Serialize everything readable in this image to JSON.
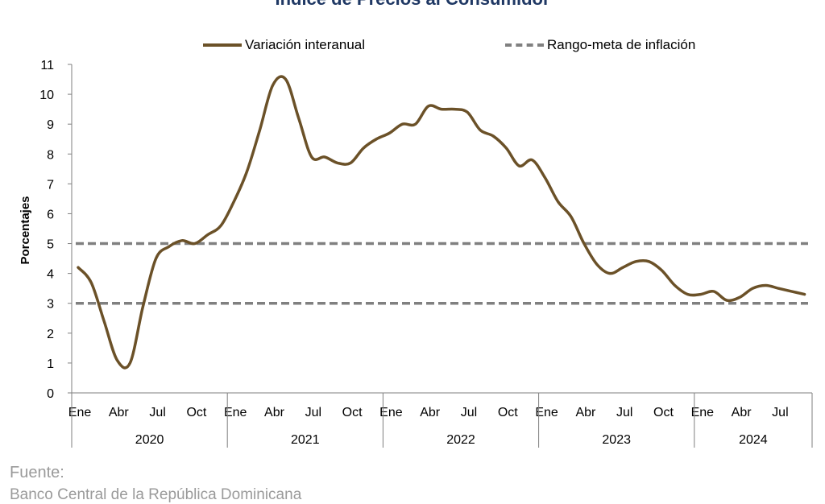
{
  "chart_data": {
    "type": "line",
    "title": "Índice de Precios al Consumidor",
    "ylabel": "Porcentajes",
    "ylim": [
      0,
      11
    ],
    "yticks": [
      "0",
      "1",
      "2",
      "3",
      "4",
      "5",
      "6",
      "7",
      "8",
      "9",
      "10",
      "11"
    ],
    "month_labels": [
      "Ene",
      "Abr",
      "Jul",
      "Oct",
      "Ene",
      "Abr",
      "Jul",
      "Oct",
      "Ene",
      "Abr",
      "Jul",
      "Oct",
      "Ene",
      "Abr",
      "Jul",
      "Oct",
      "Ene",
      "Abr",
      "Jul"
    ],
    "years": [
      "2020",
      "2021",
      "2022",
      "2023",
      "2024"
    ],
    "series": [
      {
        "name": "Variación interanual",
        "color": "#6b5128",
        "x": [
          "2020-01",
          "2020-02",
          "2020-03",
          "2020-04",
          "2020-05",
          "2020-06",
          "2020-07",
          "2020-08",
          "2020-09",
          "2020-10",
          "2020-11",
          "2020-12",
          "2021-01",
          "2021-02",
          "2021-03",
          "2021-04",
          "2021-05",
          "2021-06",
          "2021-07",
          "2021-08",
          "2021-09",
          "2021-10",
          "2021-11",
          "2021-12",
          "2022-01",
          "2022-02",
          "2022-03",
          "2022-04",
          "2022-05",
          "2022-06",
          "2022-07",
          "2022-08",
          "2022-09",
          "2022-10",
          "2022-11",
          "2022-12",
          "2023-01",
          "2023-02",
          "2023-03",
          "2023-04",
          "2023-05",
          "2023-06",
          "2023-07",
          "2023-08",
          "2023-09",
          "2023-10",
          "2023-11",
          "2023-12",
          "2024-01",
          "2024-02",
          "2024-03",
          "2024-04",
          "2024-05",
          "2024-06",
          "2024-07",
          "2024-08",
          "2024-09"
        ],
        "values": [
          4.2,
          3.7,
          2.4,
          1.1,
          1.0,
          2.9,
          4.5,
          4.9,
          5.1,
          5.0,
          5.3,
          5.6,
          6.4,
          7.4,
          8.8,
          10.3,
          10.5,
          9.2,
          7.9,
          7.9,
          7.7,
          7.7,
          8.2,
          8.5,
          8.7,
          9.0,
          9.0,
          9.6,
          9.5,
          9.5,
          9.4,
          8.8,
          8.6,
          8.2,
          7.6,
          7.8,
          7.2,
          6.4,
          5.9,
          5.0,
          4.3,
          4.0,
          4.2,
          4.4,
          4.4,
          4.1,
          3.6,
          3.3,
          3.3,
          3.4,
          3.1,
          3.2,
          3.5,
          3.6,
          3.5,
          3.4,
          3.3
        ]
      },
      {
        "name": "Rango-meta de inflación",
        "color": "#808080",
        "dashed": true,
        "bands": [
          3,
          5
        ]
      }
    ]
  },
  "footer": {
    "label": "Fuente:",
    "source": "Banco Central de la República Dominicana"
  }
}
